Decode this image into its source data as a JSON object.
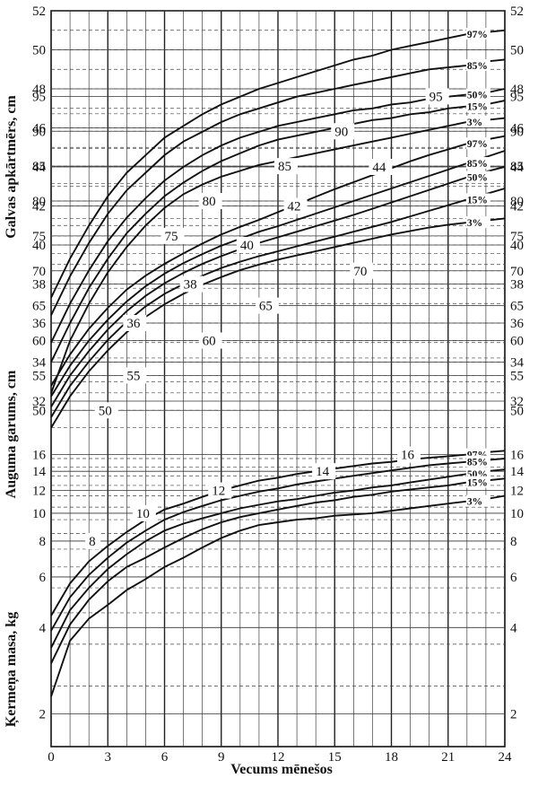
{
  "chart_data": {
    "type": "line",
    "xlabel": "Vecums mēnešos",
    "x_ticks": [
      0,
      3,
      6,
      9,
      12,
      15,
      18,
      21,
      24
    ],
    "xlim": [
      0,
      24
    ],
    "panels": [
      {
        "name": "head",
        "ylabel": "Galvas apkārtmērs, cm",
        "y_ticks": [
          32,
          34,
          36,
          38,
          40,
          42,
          44,
          46,
          48,
          50,
          52
        ],
        "ylim": [
          32,
          52
        ],
        "inner_labels": [
          "36",
          "38",
          "40",
          "42",
          "44"
        ],
        "x": [
          0,
          1,
          2,
          3,
          4,
          5,
          6,
          7,
          8,
          9,
          10,
          11,
          12,
          13,
          14,
          15,
          16,
          17,
          18,
          19,
          20,
          21,
          22,
          23,
          24
        ],
        "series": [
          {
            "name": "97%",
            "values": [
              37.3,
              39.3,
              41.0,
              42.5,
              43.7,
              44.6,
              45.5,
              46.1,
              46.7,
              47.2,
              47.6,
              48.0,
              48.3,
              48.6,
              48.9,
              49.2,
              49.5,
              49.7,
              50.0,
              50.2,
              50.4,
              50.6,
              50.8,
              50.9,
              51.0
            ]
          },
          {
            "name": "85%",
            "values": [
              36.4,
              38.4,
              40.1,
              41.6,
              42.8,
              43.7,
              44.6,
              45.3,
              45.8,
              46.3,
              46.7,
              47.0,
              47.3,
              47.6,
              47.8,
              48.0,
              48.2,
              48.4,
              48.6,
              48.8,
              49.0,
              49.1,
              49.2,
              49.4,
              49.5
            ]
          },
          {
            "name": "50%",
            "values": [
              35.0,
              37.0,
              38.7,
              40.2,
              41.4,
              42.4,
              43.3,
              44.0,
              44.6,
              45.1,
              45.5,
              45.8,
              46.1,
              46.3,
              46.5,
              46.7,
              46.9,
              47.0,
              47.2,
              47.3,
              47.5,
              47.6,
              47.7,
              47.8,
              48.0
            ]
          },
          {
            "name": "15%",
            "values": [
              34.0,
              36.0,
              37.8,
              39.3,
              40.6,
              41.6,
              42.5,
              43.2,
              43.8,
              44.3,
              44.7,
              45.1,
              45.4,
              45.6,
              45.8,
              46.0,
              46.2,
              46.4,
              46.5,
              46.7,
              46.8,
              47.0,
              47.1,
              47.2,
              47.4
            ]
          },
          {
            "name": "3%",
            "values": [
              32.4,
              35.1,
              37.0,
              38.6,
              39.9,
              41.0,
              41.9,
              42.6,
              43.1,
              43.5,
              43.8,
              44.1,
              44.3,
              44.5,
              44.7,
              44.9,
              45.1,
              45.3,
              45.5,
              45.7,
              45.9,
              46.1,
              46.3,
              46.4,
              46.5
            ]
          }
        ]
      },
      {
        "name": "length",
        "ylabel": "Auguma garums, cm",
        "y_ticks": [
          50,
          55,
          60,
          65,
          70,
          75,
          80,
          85,
          90,
          95
        ],
        "ylim": [
          45,
          95
        ],
        "inner_labels": [
          "50",
          "55",
          "60",
          "65",
          "70",
          "75",
          "80",
          "85",
          "90",
          "95"
        ],
        "x": [
          0,
          1,
          2,
          3,
          4,
          5,
          6,
          7,
          8,
          9,
          10,
          11,
          12,
          13,
          14,
          15,
          16,
          17,
          18,
          19,
          20,
          21,
          22,
          23,
          24
        ],
        "series": [
          {
            "name": "97%",
            "values": [
              53.5,
              58.0,
              61.7,
              64.7,
              67.3,
              69.3,
              71.0,
              72.5,
              73.9,
              75.2,
              76.3,
              77.3,
              78.4,
              79.5,
              80.6,
              81.7,
              82.7,
              83.7,
              84.7,
              85.7,
              86.6,
              87.4,
              88.2,
              88.8,
              89.3
            ]
          },
          {
            "name": "85%",
            "values": [
              52.0,
              56.4,
              60.0,
              63.0,
              65.6,
              67.8,
              69.6,
              71.1,
              72.4,
              73.6,
              74.6,
              75.6,
              76.4,
              77.3,
              78.2,
              79.1,
              80.0,
              80.9,
              81.8,
              82.7,
              83.6,
              84.5,
              85.4,
              86.3,
              87.2
            ]
          },
          {
            "name": "50%",
            "values": [
              50.5,
              55.0,
              58.5,
              61.6,
              64.2,
              66.4,
              68.2,
              69.7,
              71.0,
              72.1,
              73.1,
              74.0,
              74.8,
              75.6,
              76.4,
              77.2,
              78.0,
              78.9,
              79.8,
              80.7,
              81.6,
              82.5,
              83.4,
              84.2,
              84.9
            ]
          },
          {
            "name": "15%",
            "values": [
              49.0,
              53.5,
              57.0,
              60.1,
              62.7,
              64.9,
              66.7,
              68.1,
              69.3,
              70.4,
              71.3,
              72.1,
              72.8,
              73.5,
              74.2,
              74.9,
              75.6,
              76.3,
              77.0,
              77.8,
              78.6,
              79.4,
              80.2,
              81.0,
              81.8
            ]
          },
          {
            "name": "3%",
            "values": [
              47.5,
              52.0,
              55.6,
              58.6,
              61.2,
              63.4,
              65.2,
              66.7,
              68.0,
              69.1,
              70.1,
              70.9,
              71.6,
              72.2,
              72.8,
              73.4,
              74.0,
              74.6,
              75.2,
              75.7,
              76.2,
              76.6,
              76.9,
              77.2,
              77.5
            ]
          }
        ]
      },
      {
        "name": "weight",
        "ylabel": "Ķermeņa masa, kg",
        "y_ticks": [
          2,
          4,
          6,
          8,
          10,
          12,
          14,
          16
        ],
        "ylim": [
          2,
          16
        ],
        "inner_labels": [
          "8",
          "10",
          "12",
          "14",
          "16"
        ],
        "x": [
          0,
          1,
          2,
          3,
          4,
          5,
          6,
          7,
          8,
          9,
          10,
          11,
          12,
          13,
          14,
          15,
          16,
          17,
          18,
          19,
          20,
          21,
          22,
          23,
          24
        ],
        "series": [
          {
            "name": "97%",
            "values": [
              4.4,
              5.7,
              6.8,
              7.7,
              8.6,
              9.5,
              10.3,
              10.8,
              11.4,
              12.0,
              12.5,
              13.0,
              13.3,
              13.7,
              14.0,
              14.3,
              14.6,
              14.9,
              15.1,
              15.4,
              15.6,
              15.8,
              16.0,
              16.3,
              16.5
            ]
          },
          {
            "name": "85%",
            "values": [
              3.9,
              5.1,
              6.1,
              7.0,
              7.9,
              8.7,
              9.5,
              10.1,
              10.6,
              11.1,
              11.5,
              11.9,
              12.2,
              12.6,
              12.9,
              13.2,
              13.5,
              13.8,
              14.1,
              14.4,
              14.7,
              14.9,
              15.1,
              15.3,
              15.5
            ]
          },
          {
            "name": "50%",
            "values": [
              3.4,
              4.6,
              5.5,
              6.4,
              7.2,
              8.0,
              8.7,
              9.2,
              9.6,
              10.0,
              10.4,
              10.7,
              11.0,
              11.2,
              11.5,
              11.8,
              12.0,
              12.3,
              12.5,
              12.8,
              13.1,
              13.4,
              13.7,
              14.0,
              14.2
            ]
          },
          {
            "name": "15%",
            "values": [
              3.0,
              4.1,
              5.0,
              5.8,
              6.5,
              7.0,
              7.6,
              8.2,
              8.8,
              9.3,
              9.7,
              10.0,
              10.3,
              10.6,
              10.9,
              11.1,
              11.4,
              11.6,
              11.9,
              12.1,
              12.3,
              12.5,
              12.8,
              13.0,
              13.2
            ]
          },
          {
            "name": "3%",
            "values": [
              2.3,
              3.6,
              4.3,
              4.8,
              5.4,
              5.9,
              6.5,
              7.0,
              7.6,
              8.2,
              8.7,
              9.1,
              9.3,
              9.5,
              9.6,
              9.8,
              9.9,
              10.0,
              10.2,
              10.4,
              10.6,
              10.8,
              11.0,
              11.2,
              11.5
            ]
          }
        ]
      }
    ]
  }
}
